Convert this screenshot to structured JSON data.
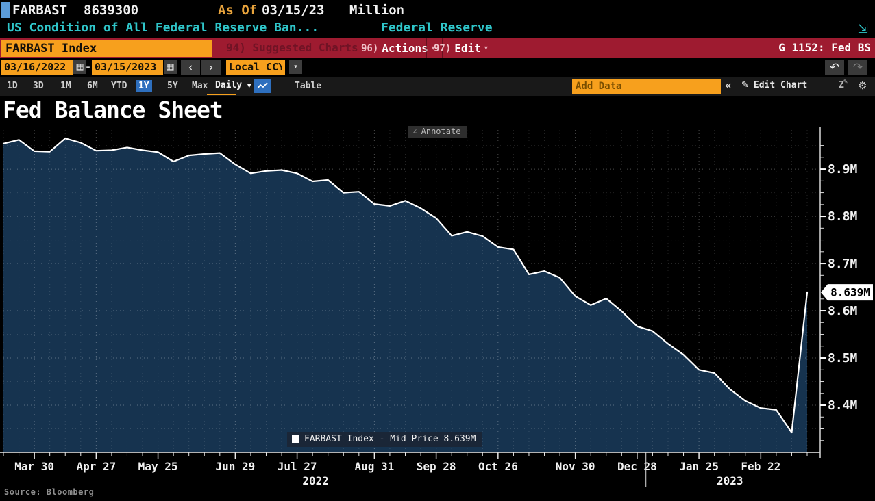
{
  "header": {
    "ticker": "FARBAST",
    "last_value": "8639300",
    "as_of_label": "As Of",
    "as_of_date": "03/15/23",
    "units": "Million",
    "description": "US Condition of All Federal Reserve Ban...",
    "source_name": "Federal Reserve"
  },
  "toolbar": {
    "security_field": "FARBAST Index",
    "suggested_charts": "94) Suggested Charts",
    "actions_num": "96)",
    "actions_label": "Actions",
    "edit_num": "97)",
    "edit_label": "Edit",
    "chart_id": "G 1152: Fed BS"
  },
  "range_bar": {
    "start_date": "03/16/2022",
    "dash": "-",
    "end_date": "03/15/2023",
    "currency": "Local CCY"
  },
  "period_bar": {
    "periods": [
      "1D",
      "3D",
      "1M",
      "6M",
      "YTD",
      "1Y",
      "5Y",
      "Max"
    ],
    "selected_period": "1Y",
    "frequency": "Daily",
    "table_label": "Table",
    "add_data_placeholder": "Add Data",
    "edit_chart_label": "Edit Chart"
  },
  "icons": {
    "expand": "⇲",
    "caret_down_small": "▾",
    "caret_down": "▼",
    "calendar": "▦",
    "prev": "‹",
    "next": "›",
    "undo": "↶",
    "redo": "↷",
    "collapse": "«",
    "pencil": "✎",
    "annotate_z": "Z",
    "gear": "⚙",
    "annotate_pencil": "∠"
  },
  "chart": {
    "title": "Fed Balance Sheet",
    "annotate_label": "Annotate",
    "legend": "FARBAST Index - Mid Price 8.639M",
    "last_price_label": "8.639M",
    "source": "Source: Bloomberg"
  },
  "colors": {
    "accent_orange": "#f7a01d",
    "bloomberg_red": "#9e1b30",
    "cyan": "#2fc5c9",
    "amber": "#e8a33c",
    "selected_blue": "#2e6fbe",
    "area_fill": "#16334f",
    "line": "#ffffff"
  },
  "chart_data": {
    "type": "area",
    "title": "Fed Balance Sheet",
    "x": [
      "2022-03-16",
      "2022-03-23",
      "2022-03-30",
      "2022-04-06",
      "2022-04-13",
      "2022-04-20",
      "2022-04-27",
      "2022-05-04",
      "2022-05-11",
      "2022-05-18",
      "2022-05-25",
      "2022-06-01",
      "2022-06-08",
      "2022-06-15",
      "2022-06-22",
      "2022-06-29",
      "2022-07-06",
      "2022-07-13",
      "2022-07-20",
      "2022-07-27",
      "2022-08-03",
      "2022-08-10",
      "2022-08-17",
      "2022-08-24",
      "2022-08-31",
      "2022-09-07",
      "2022-09-14",
      "2022-09-21",
      "2022-09-28",
      "2022-10-05",
      "2022-10-12",
      "2022-10-19",
      "2022-10-26",
      "2022-11-02",
      "2022-11-09",
      "2022-11-16",
      "2022-11-23",
      "2022-11-30",
      "2022-12-07",
      "2022-12-14",
      "2022-12-21",
      "2022-12-28",
      "2023-01-04",
      "2023-01-11",
      "2023-01-18",
      "2023-01-25",
      "2023-02-01",
      "2023-02-08",
      "2023-02-15",
      "2023-02-22",
      "2023-03-01",
      "2023-03-08",
      "2023-03-15"
    ],
    "values": [
      8.954,
      8.962,
      8.938,
      8.937,
      8.965,
      8.956,
      8.939,
      8.94,
      8.946,
      8.94,
      8.936,
      8.916,
      8.929,
      8.932,
      8.934,
      8.91,
      8.891,
      8.896,
      8.898,
      8.891,
      8.874,
      8.877,
      8.85,
      8.852,
      8.826,
      8.822,
      8.833,
      8.817,
      8.796,
      8.759,
      8.767,
      8.758,
      8.735,
      8.73,
      8.677,
      8.684,
      8.67,
      8.631,
      8.612,
      8.626,
      8.599,
      8.567,
      8.557,
      8.53,
      8.507,
      8.475,
      8.468,
      8.434,
      8.409,
      8.394,
      8.39,
      8.342,
      8.639
    ],
    "series_name": "FARBAST Index - Mid Price",
    "last_price": 8.639,
    "last_price_label": "8.639M",
    "ylim": [
      8.3,
      8.99
    ],
    "y_ticks": [
      8.4,
      8.5,
      8.6,
      8.7,
      8.8,
      8.9
    ],
    "y_tick_suffix": "M",
    "x_tick_labels": [
      {
        "label": "Mar 30",
        "i": 2
      },
      {
        "label": "Apr 27",
        "i": 6
      },
      {
        "label": "May 25",
        "i": 10
      },
      {
        "label": "Jun 29",
        "i": 15
      },
      {
        "label": "Jul 27",
        "i": 19
      },
      {
        "label": "Aug 31",
        "i": 24
      },
      {
        "label": "Sep 28",
        "i": 28
      },
      {
        "label": "Oct 26",
        "i": 32
      },
      {
        "label": "Nov 30",
        "i": 37
      },
      {
        "label": "Dec 28",
        "i": 41
      },
      {
        "label": "Jan 25",
        "i": 45
      },
      {
        "label": "Feb 22",
        "i": 49
      }
    ],
    "year_labels": [
      {
        "label": "2022",
        "i": 20.2
      },
      {
        "label": "2023",
        "i": 47.0
      }
    ],
    "year_divider_i": 41.57,
    "grid": true,
    "legend_position": "bottom-center",
    "line_color": "#ffffff",
    "fill_color": "#16334f"
  }
}
